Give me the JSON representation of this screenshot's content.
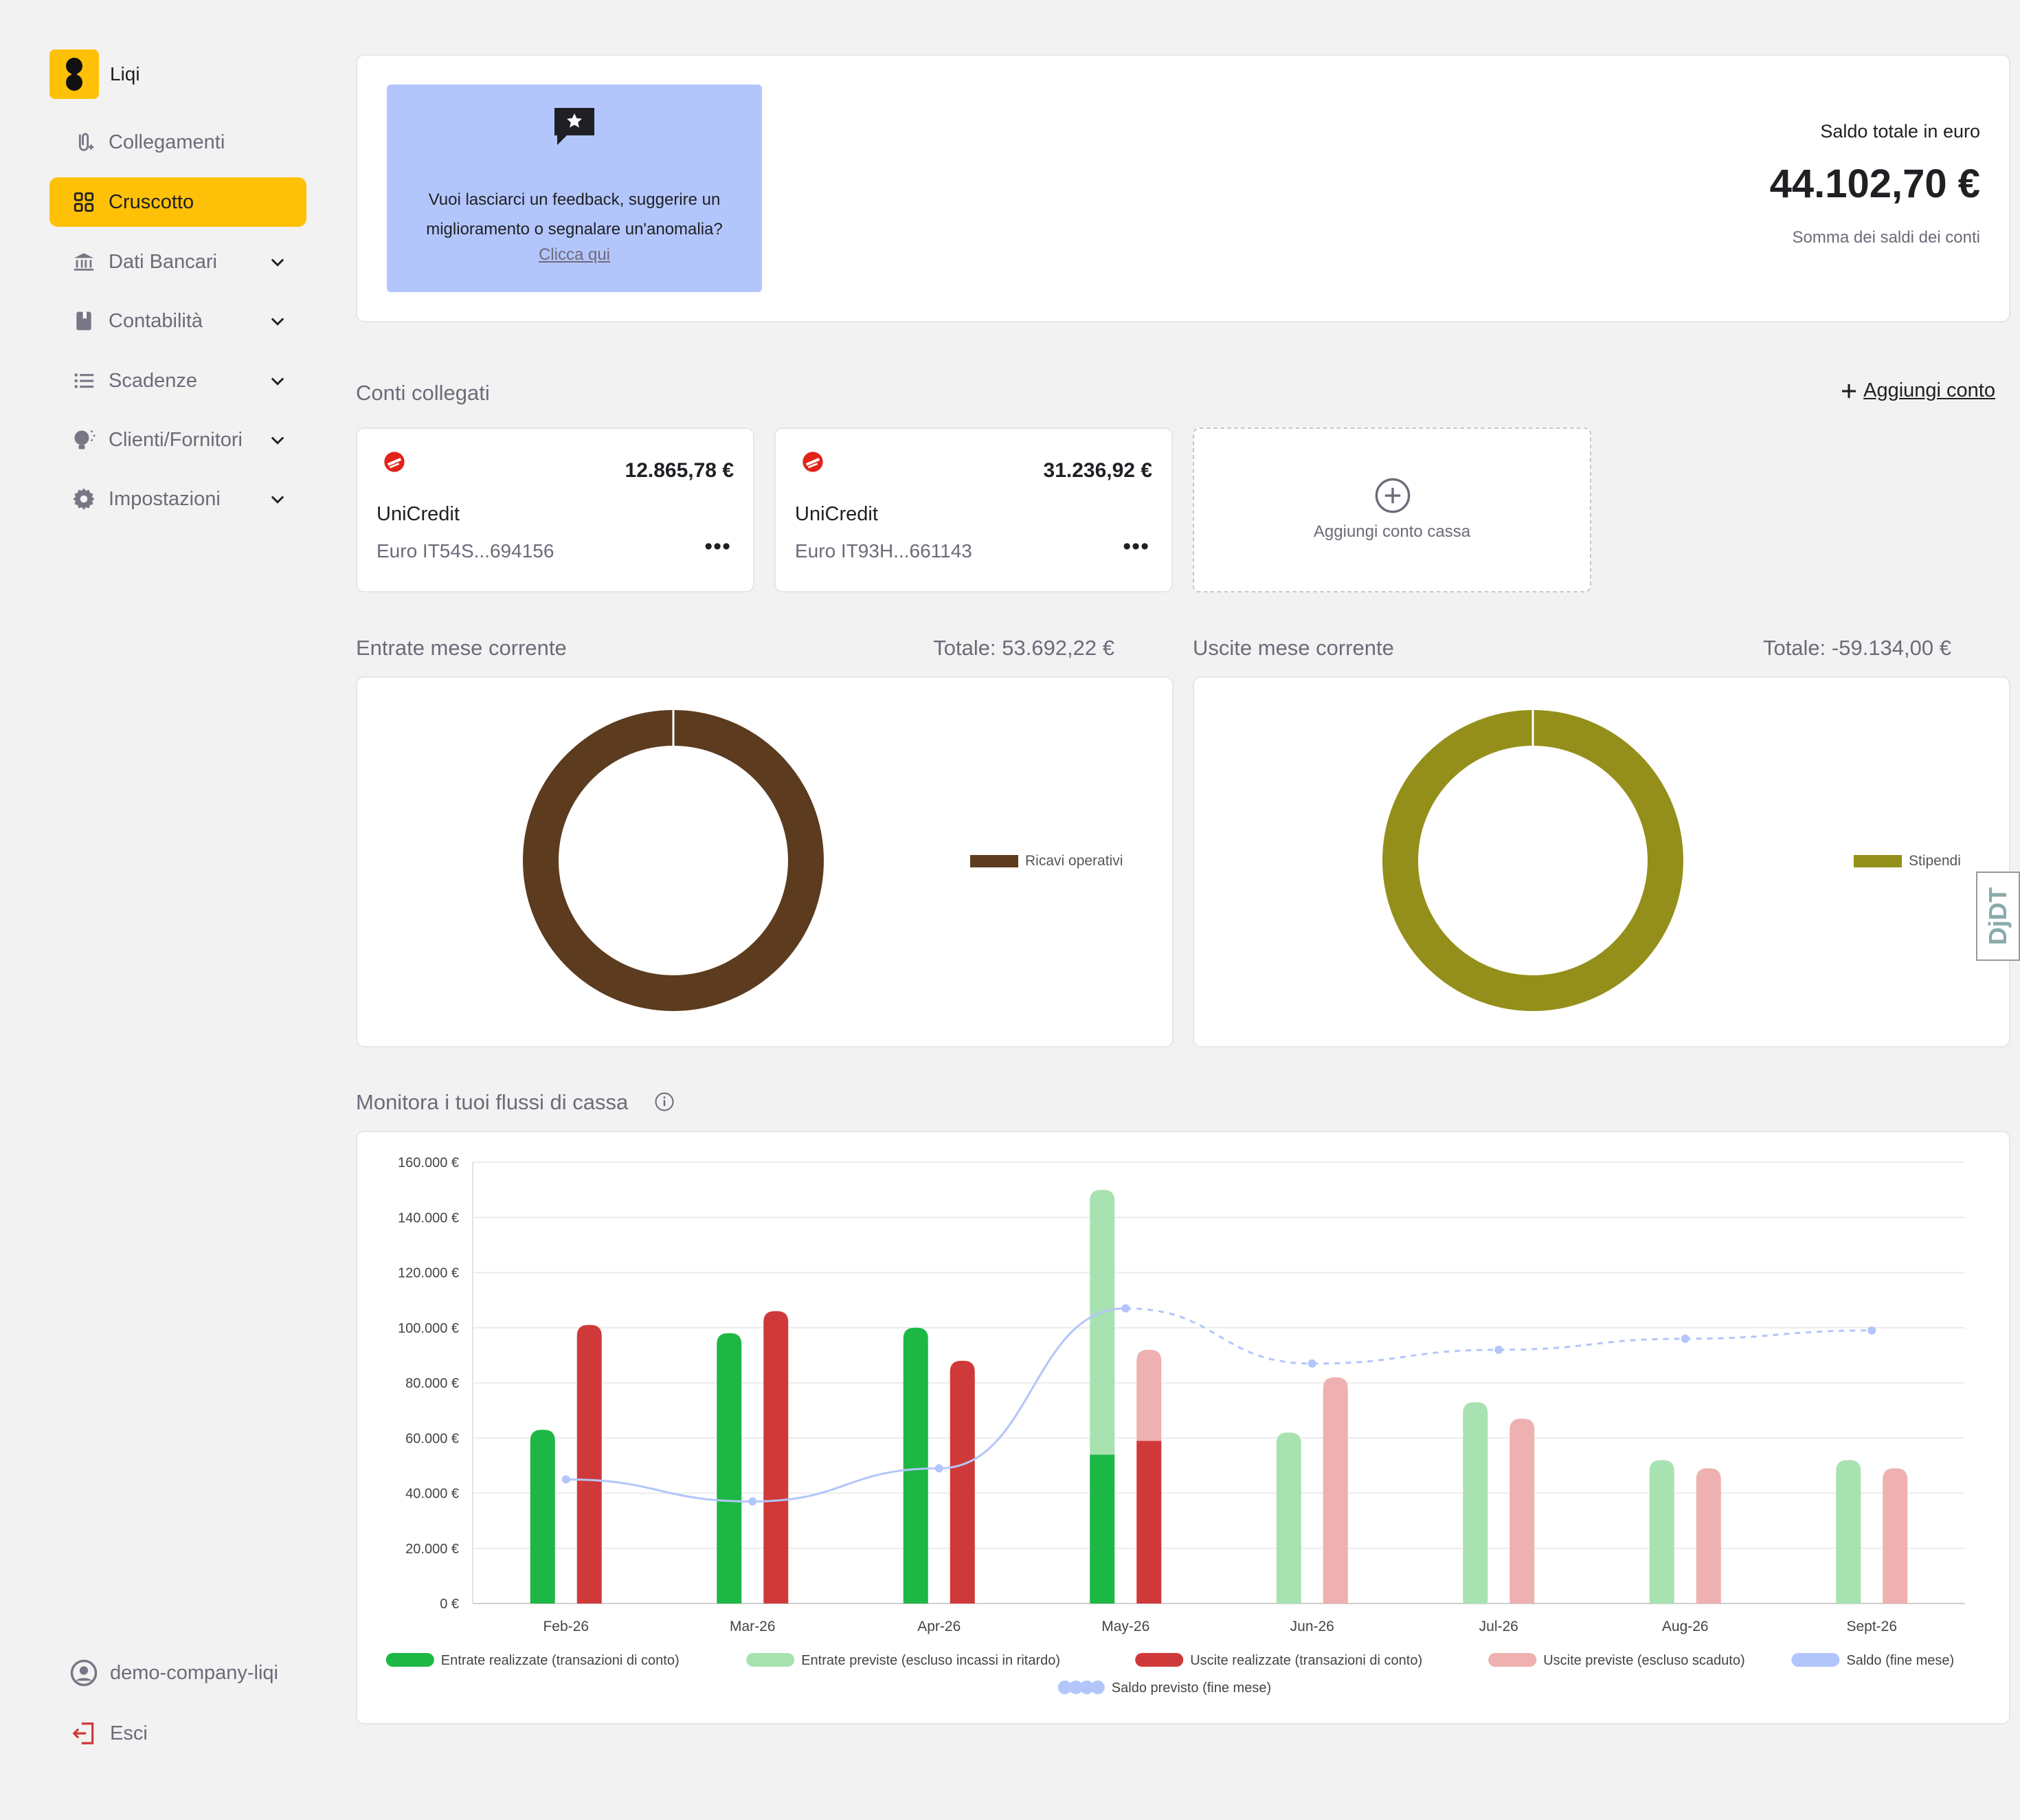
{
  "app": {
    "name": "Liqi"
  },
  "sidebar": {
    "items": [
      {
        "label": "Collegamenti",
        "icon": "link-icon",
        "active": false,
        "expandable": false
      },
      {
        "label": "Cruscotto",
        "icon": "dashboard-grid-icon",
        "active": true,
        "expandable": false
      },
      {
        "label": "Dati Bancari",
        "icon": "bank-icon",
        "active": false,
        "expandable": true
      },
      {
        "label": "Contabilità",
        "icon": "book-icon",
        "active": false,
        "expandable": true
      },
      {
        "label": "Scadenze",
        "icon": "list-icon",
        "active": false,
        "expandable": true
      },
      {
        "label": "Clienti/Fornitori",
        "icon": "lightbulb-icon",
        "active": false,
        "expandable": true
      },
      {
        "label": "Impostazioni",
        "icon": "gear-icon",
        "active": false,
        "expandable": true
      }
    ],
    "user": "demo-company-liqi",
    "logout": "Esci"
  },
  "feedback": {
    "text": "Vuoi lasciarci un feedback, suggerire un miglioramento o segnalare un'anomalia?",
    "link": "Clicca qui"
  },
  "balance": {
    "label": "Saldo totale in euro",
    "value": "44.102,70 €",
    "sub": "Somma dei saldi dei conti"
  },
  "accounts_section": {
    "title": "Conti collegati",
    "add_label": "Aggiungi conto",
    "accounts": [
      {
        "amount": "12.865,78 €",
        "bank": "UniCredit",
        "iban": "Euro IT54S...694156"
      },
      {
        "amount": "31.236,92 €",
        "bank": "UniCredit",
        "iban": "Euro IT93H...661143"
      }
    ],
    "add_cash_label": "Aggiungi conto cassa"
  },
  "income": {
    "title": "Entrate mese corrente",
    "total": "Totale: 53.692,22 €",
    "legend": "Ricavi operativi",
    "color": "#5c3b1e"
  },
  "expenses": {
    "title": "Uscite mese corrente",
    "total": "Totale: -59.134,00 €",
    "legend": "Stipendi",
    "color": "#948f1a"
  },
  "cashflow": {
    "title": "Monitora i tuoi flussi di cassa"
  },
  "debug_toolbar": {
    "label": "DjDT"
  },
  "colors": {
    "accent": "#ffc107",
    "green": "#1db745",
    "green_light": "#a8e2b1",
    "red": "#d0393a",
    "red_light": "#eeb0b0",
    "blue_line": "#b3c6fb"
  },
  "chart_data": [
    {
      "type": "pie",
      "title": "Entrate mese corrente",
      "labels": [
        "Ricavi operativi"
      ],
      "values": [
        53692.22
      ],
      "donut": true,
      "legend_position": "right"
    },
    {
      "type": "pie",
      "title": "Uscite mese corrente",
      "labels": [
        "Stipendi"
      ],
      "values": [
        59134.0
      ],
      "donut": true,
      "legend_position": "right"
    },
    {
      "type": "bar",
      "title": "Monitora i tuoi flussi di cassa",
      "categories": [
        "Feb-26",
        "Mar-26",
        "Apr-26",
        "May-26",
        "Jun-26",
        "Jul-26",
        "Aug-26",
        "Sept-26"
      ],
      "yticks": [
        "0 €",
        "20.000 €",
        "40.000 €",
        "60.000 €",
        "80.000 €",
        "100.000 €",
        "120.000 €",
        "140.000 €",
        "160.000 €"
      ],
      "ylim": [
        0,
        160000
      ],
      "grid": true,
      "legend_position": "bottom",
      "series": [
        {
          "name": "Entrate realizzate (transazioni di conto)",
          "stack": "in",
          "color": "#1db745",
          "values": [
            63000,
            98000,
            100000,
            54000,
            0,
            0,
            0,
            0
          ]
        },
        {
          "name": "Entrate previste (escluso incassi in ritardo)",
          "stack": "in",
          "color": "#a8e2b1",
          "values": [
            0,
            0,
            0,
            96000,
            62000,
            73000,
            52000,
            52000
          ]
        },
        {
          "name": "Uscite realizzate (transazioni di conto)",
          "stack": "out",
          "color": "#d0393a",
          "values": [
            101000,
            106000,
            88000,
            59000,
            0,
            0,
            0,
            0
          ]
        },
        {
          "name": "Uscite previste (escluso scaduto)",
          "stack": "out",
          "color": "#eeb0b0",
          "values": [
            0,
            0,
            0,
            33000,
            82000,
            67000,
            49000,
            49000
          ]
        },
        {
          "name": "Saldo (fine mese)",
          "kind": "line",
          "color": "#b3c6fb",
          "values": [
            45000,
            37000,
            49000,
            107000,
            null,
            null,
            null,
            null
          ]
        },
        {
          "name": "Saldo previsto (fine mese)",
          "kind": "line-dashed",
          "color": "#b3c6fb",
          "values": [
            null,
            null,
            null,
            107000,
            87000,
            92000,
            96000,
            99000
          ]
        }
      ]
    }
  ]
}
